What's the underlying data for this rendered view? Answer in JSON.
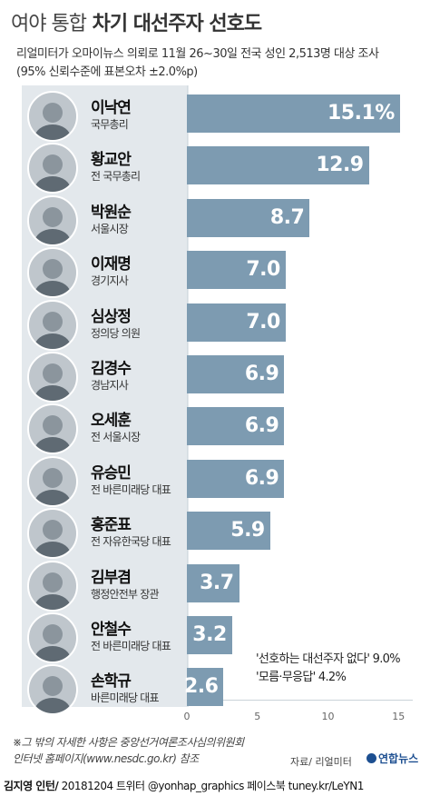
{
  "header": {
    "title_light": "여야 통합",
    "title_bold": "차기 대선주자 선호도",
    "subtitle1": "리얼미터가 오마이뉴스 의뢰로 11월 26~30일 전국 성인 2,513명 대상 조사",
    "subtitle2": "(95% 신뢰수준에 표본오차 ±2.0%p)"
  },
  "chart_data": {
    "type": "bar",
    "orientation": "horizontal",
    "categories": [
      "이낙연",
      "황교안",
      "박원순",
      "이재명",
      "심상정",
      "김경수",
      "오세훈",
      "유승민",
      "홍준표",
      "김부겸",
      "안철수",
      "손학규"
    ],
    "roles": [
      "국무총리",
      "전 국무총리",
      "서울시장",
      "경기지사",
      "정의당 의원",
      "경남지사",
      "전 서울시장",
      "전 바른미래당 대표",
      "전 자유한국당 대표",
      "행정안전부 장관",
      "전 바른미래당 대표",
      "바른미래당 대표"
    ],
    "values": [
      15.1,
      12.9,
      8.7,
      7.0,
      7.0,
      6.9,
      6.9,
      6.9,
      5.9,
      3.7,
      3.2,
      2.6
    ],
    "value_labels": [
      "15.1%",
      "12.9",
      "8.7",
      "7.0",
      "7.0",
      "6.9",
      "6.9",
      "6.9",
      "5.9",
      "3.7",
      "3.2",
      "2.6"
    ],
    "xlim": [
      0,
      16
    ],
    "xticks": [
      0,
      5,
      10,
      15
    ],
    "bar_color": "#7d9bb1",
    "notes": [
      "'선호하는 대선주자 없다' 9.0%",
      "'모름·무응답' 4.2%"
    ]
  },
  "footer": {
    "footnote1": "※그 밖의 자세한 사항은 중앙선거여론조사심의위원회",
    "footnote2": "인터넷 홈페이지(www.nesdc.go.kr) 참조",
    "source": "자료/ 리얼미터",
    "logo": "연합뉴스",
    "credit_name": "김지영 인턴/",
    "credit_rest": " 20181204 트위터 @yonhap_graphics  페이스북 tuney.kr/LeYN1"
  }
}
